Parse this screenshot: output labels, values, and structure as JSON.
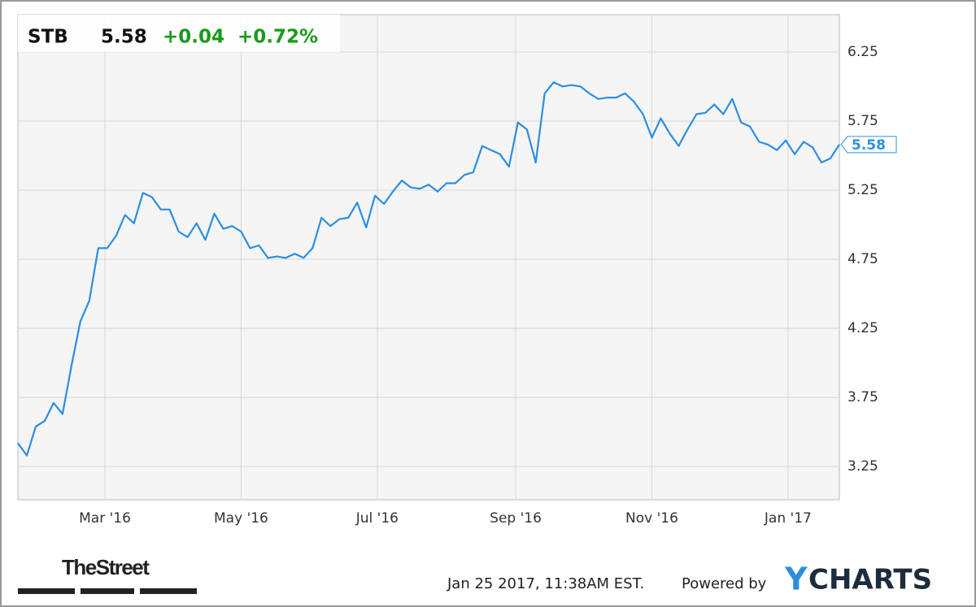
{
  "chart_data": {
    "type": "line",
    "header": {
      "symbol": "STB",
      "price": "5.58",
      "change": "+0.04",
      "change_percent": "+0.72%"
    },
    "end_label": "5.58",
    "series": [
      {
        "name": "STB",
        "color": "#2b8fe0",
        "values": [
          3.42,
          3.33,
          3.54,
          3.58,
          3.71,
          3.63,
          3.98,
          4.3,
          4.45,
          4.83,
          4.83,
          4.92,
          5.07,
          5.01,
          5.23,
          5.2,
          5.11,
          5.11,
          4.95,
          4.91,
          5.01,
          4.89,
          5.08,
          4.97,
          4.99,
          4.95,
          4.83,
          4.85,
          4.76,
          4.77,
          4.76,
          4.79,
          4.76,
          4.83,
          5.05,
          4.99,
          5.04,
          5.05,
          5.16,
          4.98,
          5.21,
          5.15,
          5.24,
          5.32,
          5.27,
          5.26,
          5.29,
          5.24,
          5.3,
          5.3,
          5.36,
          5.38,
          5.57,
          5.54,
          5.51,
          5.42,
          5.74,
          5.69,
          5.45,
          5.95,
          6.03,
          6.0,
          6.01,
          6.0,
          5.95,
          5.91,
          5.92,
          5.92,
          5.95,
          5.89,
          5.8,
          5.63,
          5.77,
          5.66,
          5.57,
          5.69,
          5.8,
          5.81,
          5.87,
          5.8,
          5.91,
          5.74,
          5.71,
          5.6,
          5.58,
          5.54,
          5.61,
          5.51,
          5.6,
          5.56,
          5.45,
          5.48,
          5.58
        ]
      }
    ],
    "xlim": [
      0,
      92
    ],
    "xticks": [
      {
        "value": 9.75,
        "label": "Mar '16"
      },
      {
        "value": 25,
        "label": "May '16"
      },
      {
        "value": 40.25,
        "label": "Jul '16"
      },
      {
        "value": 55.75,
        "label": "Sep '16"
      },
      {
        "value": 71,
        "label": "Nov '16"
      },
      {
        "value": 86.25,
        "label": "Jan '17"
      }
    ],
    "ylim": [
      3.01,
      6.52
    ],
    "yticks": [
      3.25,
      3.75,
      4.25,
      4.75,
      5.25,
      5.75,
      6.25
    ],
    "grid": true,
    "up_color": "#1a9a1a"
  },
  "footer": {
    "brand": "TheStreet",
    "timestamp": "Jan 25 2017, 11:38AM EST.",
    "powered_by": "Powered by",
    "logo_y": "Y",
    "logo_rest": "CHARTS"
  }
}
